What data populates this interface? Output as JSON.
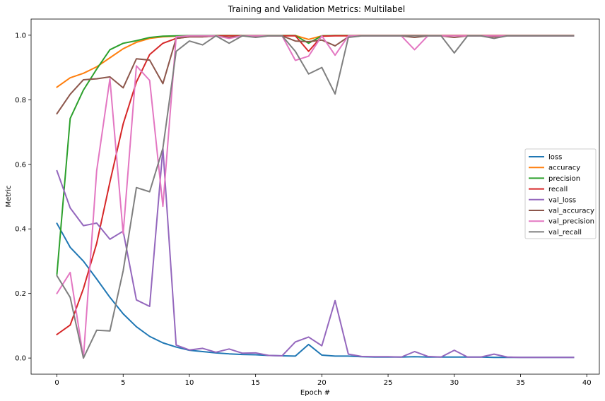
{
  "chart_data": {
    "type": "line",
    "title": "Training and Validation Metrics: Multilabel",
    "xlabel": "Epoch #",
    "ylabel": "Metric",
    "xlim": [
      -1.95,
      40.95
    ],
    "ylim": [
      -0.05,
      1.05
    ],
    "xticks": [
      0,
      5,
      10,
      15,
      20,
      25,
      30,
      35,
      40
    ],
    "yticks": [
      0.0,
      0.2,
      0.4,
      0.6,
      0.8,
      1.0
    ],
    "xtick_labels": [
      "0",
      "5",
      "10",
      "15",
      "20",
      "25",
      "30",
      "35",
      "40"
    ],
    "ytick_labels": [
      "0.0",
      "0.2",
      "0.4",
      "0.6",
      "0.8",
      "1.0"
    ],
    "grid": false,
    "legend_position": "center-right",
    "x": [
      0,
      1,
      2,
      3,
      4,
      5,
      6,
      7,
      8,
      9,
      10,
      11,
      12,
      13,
      14,
      15,
      16,
      17,
      18,
      19,
      20,
      21,
      22,
      23,
      24,
      25,
      26,
      27,
      28,
      29,
      30,
      31,
      32,
      33,
      34,
      35,
      36,
      37,
      38,
      39
    ],
    "series": [
      {
        "name": "loss",
        "color": "#1f77b4",
        "values": [
          0.417,
          0.343,
          0.3,
          0.245,
          0.188,
          0.137,
          0.097,
          0.067,
          0.047,
          0.034,
          0.024,
          0.02,
          0.016,
          0.013,
          0.011,
          0.01,
          0.008,
          0.007,
          0.006,
          0.042,
          0.009,
          0.006,
          0.006,
          0.004,
          0.003,
          0.003,
          0.003,
          0.004,
          0.003,
          0.003,
          0.003,
          0.003,
          0.003,
          0.002,
          0.002,
          0.002,
          0.002,
          0.002,
          0.002,
          0.002
        ]
      },
      {
        "name": "accuracy",
        "color": "#ff7f0e",
        "values": [
          0.839,
          0.868,
          0.882,
          0.902,
          0.93,
          0.958,
          0.978,
          0.99,
          0.995,
          0.997,
          0.998,
          0.998,
          0.999,
          0.999,
          0.999,
          0.999,
          0.999,
          0.999,
          0.999,
          0.987,
          0.998,
          0.999,
          0.999,
          0.999,
          0.999,
          0.999,
          0.999,
          0.999,
          0.999,
          0.999,
          0.999,
          0.999,
          0.999,
          0.999,
          0.999,
          0.999,
          0.999,
          0.999,
          0.999,
          0.999
        ]
      },
      {
        "name": "precision",
        "color": "#2ca02c",
        "values": [
          0.26,
          0.742,
          0.83,
          0.895,
          0.955,
          0.975,
          0.983,
          0.993,
          0.997,
          0.998,
          0.999,
          0.999,
          0.999,
          0.999,
          0.999,
          0.999,
          0.999,
          0.999,
          0.999,
          0.975,
          0.998,
          0.999,
          0.999,
          0.999,
          0.999,
          0.999,
          0.999,
          0.999,
          0.999,
          0.999,
          0.999,
          0.999,
          0.999,
          0.999,
          0.999,
          0.999,
          0.999,
          0.999,
          0.999,
          0.999
        ]
      },
      {
        "name": "recall",
        "color": "#d62728",
        "values": [
          0.073,
          0.102,
          0.215,
          0.355,
          0.545,
          0.725,
          0.855,
          0.94,
          0.975,
          0.99,
          0.995,
          0.995,
          0.998,
          0.998,
          0.998,
          0.998,
          0.998,
          0.998,
          0.998,
          0.95,
          0.997,
          0.998,
          0.998,
          0.999,
          0.999,
          0.999,
          0.999,
          0.999,
          0.999,
          0.999,
          0.999,
          0.999,
          0.999,
          0.999,
          0.999,
          0.999,
          0.999,
          0.999,
          0.999,
          0.999
        ]
      },
      {
        "name": "val_loss",
        "color": "#9467bd",
        "values": [
          0.58,
          0.465,
          0.41,
          0.418,
          0.368,
          0.393,
          0.18,
          0.16,
          0.65,
          0.04,
          0.025,
          0.03,
          0.018,
          0.028,
          0.015,
          0.016,
          0.008,
          0.007,
          0.05,
          0.065,
          0.038,
          0.178,
          0.012,
          0.005,
          0.004,
          0.004,
          0.003,
          0.02,
          0.005,
          0.003,
          0.024,
          0.003,
          0.003,
          0.012,
          0.003,
          0.002,
          0.002,
          0.002,
          0.002,
          0.002
        ]
      },
      {
        "name": "val_accuracy",
        "color": "#8c564b",
        "values": [
          0.757,
          0.817,
          0.862,
          0.865,
          0.871,
          0.837,
          0.927,
          0.923,
          0.85,
          0.99,
          0.995,
          0.995,
          0.998,
          0.993,
          0.998,
          0.995,
          0.998,
          0.998,
          0.982,
          0.98,
          0.985,
          0.967,
          0.995,
          0.998,
          0.998,
          0.998,
          0.998,
          0.993,
          0.998,
          0.998,
          0.993,
          0.998,
          0.998,
          0.995,
          0.998,
          0.998,
          0.998,
          0.998,
          0.998,
          0.998
        ]
      },
      {
        "name": "val_precision",
        "color": "#e377c2",
        "values": [
          0.2,
          0.265,
          0.0,
          0.58,
          0.865,
          0.385,
          0.905,
          0.86,
          0.47,
          0.995,
          0.998,
          0.998,
          0.998,
          0.99,
          0.998,
          0.998,
          0.998,
          0.998,
          0.922,
          0.935,
          0.998,
          0.938,
          0.998,
          0.998,
          0.998,
          0.998,
          0.998,
          0.955,
          0.998,
          0.998,
          0.998,
          0.998,
          0.998,
          0.998,
          0.998,
          0.998,
          0.998,
          0.998,
          0.998,
          0.998
        ]
      },
      {
        "name": "val_recall",
        "color": "#7f7f7f",
        "values": [
          0.255,
          0.188,
          0.0,
          0.086,
          0.084,
          0.27,
          0.528,
          0.515,
          0.65,
          0.95,
          0.982,
          0.97,
          0.998,
          0.975,
          0.998,
          0.993,
          0.998,
          0.998,
          0.95,
          0.88,
          0.9,
          0.818,
          0.993,
          0.998,
          0.998,
          0.998,
          0.998,
          0.998,
          0.998,
          0.998,
          0.945,
          0.998,
          0.998,
          0.99,
          0.998,
          0.998,
          0.998,
          0.998,
          0.998,
          0.998
        ]
      }
    ]
  }
}
